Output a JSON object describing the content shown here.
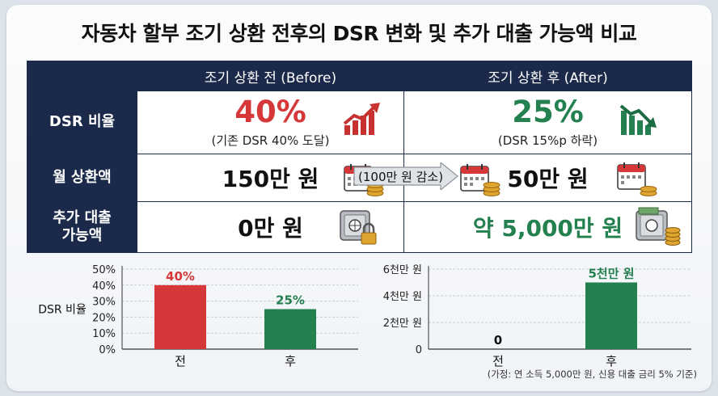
{
  "title": "자동차 할부 조기 상환 전후의 DSR 변화 및 추가 대출 가능액 비교",
  "table": {
    "col_before": "조기 상환 전 (Before)",
    "col_after": "조기 상환 후 (After)",
    "rows": {
      "dsr": {
        "label": "DSR 비율",
        "before_value": "40%",
        "before_note": "(기존 DSR 40% 도달)",
        "after_value": "25%",
        "after_note": "(DSR 15%p 하락)"
      },
      "monthly": {
        "label": "월 상환액",
        "before_value": "150만 원",
        "after_value": "50만 원",
        "change_label": "(100만 원 감소)"
      },
      "additional": {
        "label_line1": "추가 대출",
        "label_line2": "가능액",
        "before_value": "0만 원",
        "after_value": "약 5,000만 원"
      }
    }
  },
  "colors": {
    "navy": "#1b2a4a",
    "red": "#d6383a",
    "green": "#23804f"
  },
  "icons": {
    "dsr_before": "trend-up-icon",
    "dsr_after": "trend-down-icon",
    "monthly": "calendar-coins-icon",
    "safe_locked": "locked-safe-icon",
    "safe_money": "money-safe-icon"
  },
  "chart_data": [
    {
      "type": "bar",
      "ylabel": "DSR 비율",
      "categories": [
        "전",
        "후"
      ],
      "values": [
        40,
        25
      ],
      "value_labels": [
        "40%",
        "25%"
      ],
      "bar_colors": [
        "#d6383a",
        "#23804f"
      ],
      "ylim": [
        0,
        50
      ],
      "yticks": [
        0,
        10,
        20,
        30,
        40,
        50
      ],
      "ytick_labels": [
        "0%",
        "10%",
        "20%",
        "30%",
        "40%",
        "50%"
      ],
      "grid": true
    },
    {
      "type": "bar",
      "ylabel": "",
      "categories": [
        "전",
        "후"
      ],
      "values": [
        0,
        5000
      ],
      "value_labels": [
        "0",
        "5천만 원"
      ],
      "bar_colors": [
        "#23804f",
        "#23804f"
      ],
      "ylim": [
        0,
        6000
      ],
      "yticks": [
        0,
        2000,
        4000,
        6000
      ],
      "ytick_labels": [
        "0",
        "2천만 원",
        "4천만 원",
        "6천만 원"
      ],
      "grid": true,
      "annotation": "(가정: 연 소득 5,000만 원, 신용 대출 금리 5% 기준)"
    }
  ]
}
